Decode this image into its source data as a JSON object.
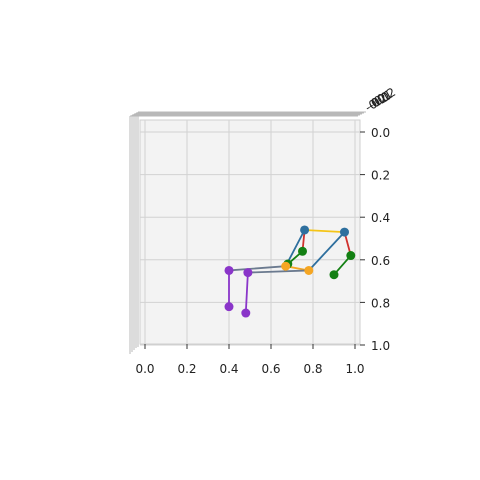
{
  "chart_data": {
    "type": "3d-pose-skeleton",
    "title": "",
    "xlabel": "",
    "ylabel": "",
    "zlabel": "",
    "xlim": [
      0.0,
      1.0
    ],
    "ylim": [
      0.0,
      1.0
    ],
    "x_ticks": [
      "0.0",
      "0.2",
      "0.4",
      "0.6",
      "0.8",
      "1.0"
    ],
    "y_ticks": [
      "0.0",
      "0.2",
      "0.4",
      "0.6",
      "0.8",
      "1.0"
    ],
    "z_ticks": [
      "-0.2",
      "-0.1",
      "0.0",
      "0.1",
      "0.2"
    ],
    "grid": true,
    "background": "#f3f3f3",
    "joints": [
      {
        "id": "shoulder_l",
        "x": 0.76,
        "y": 0.46,
        "color": "#2e6f9e"
      },
      {
        "id": "shoulder_r",
        "x": 0.95,
        "y": 0.47,
        "color": "#2e6f9e"
      },
      {
        "id": "elbow_l",
        "x": 0.75,
        "y": 0.56,
        "color": "#138013"
      },
      {
        "id": "wrist_l",
        "x": 0.68,
        "y": 0.62,
        "color": "#138013"
      },
      {
        "id": "elbow_r",
        "x": 0.98,
        "y": 0.58,
        "color": "#138013"
      },
      {
        "id": "wrist_r",
        "x": 0.9,
        "y": 0.67,
        "color": "#138013"
      },
      {
        "id": "hip_l",
        "x": 0.67,
        "y": 0.63,
        "color": "#f5a623"
      },
      {
        "id": "hip_r",
        "x": 0.78,
        "y": 0.65,
        "color": "#f5a623"
      },
      {
        "id": "knee_l",
        "x": 0.4,
        "y": 0.65,
        "color": "#8a35c9"
      },
      {
        "id": "knee_r",
        "x": 0.49,
        "y": 0.66,
        "color": "#8a35c9"
      },
      {
        "id": "ankle_l",
        "x": 0.4,
        "y": 0.82,
        "color": "#8a35c9"
      },
      {
        "id": "ankle_r",
        "x": 0.48,
        "y": 0.85,
        "color": "#8a35c9"
      }
    ],
    "bones": [
      {
        "from": "shoulder_l",
        "to": "shoulder_r",
        "color": "#f5c518"
      },
      {
        "from": "shoulder_l",
        "to": "elbow_l",
        "color": "#d0312d"
      },
      {
        "from": "shoulder_r",
        "to": "elbow_r",
        "color": "#d0312d"
      },
      {
        "from": "elbow_l",
        "to": "wrist_l",
        "color": "#138013"
      },
      {
        "from": "elbow_r",
        "to": "wrist_r",
        "color": "#138013"
      },
      {
        "from": "shoulder_l",
        "to": "hip_l",
        "color": "#2e6f9e"
      },
      {
        "from": "shoulder_r",
        "to": "hip_r",
        "color": "#2e6f9e"
      },
      {
        "from": "hip_l",
        "to": "hip_r",
        "color": "#f5a623"
      },
      {
        "from": "hip_l",
        "to": "knee_l",
        "color": "#6b7a8f"
      },
      {
        "from": "hip_r",
        "to": "knee_r",
        "color": "#6b7a8f"
      },
      {
        "from": "knee_l",
        "to": "ankle_l",
        "color": "#8a35c9"
      },
      {
        "from": "knee_r",
        "to": "ankle_r",
        "color": "#8a35c9"
      }
    ]
  }
}
